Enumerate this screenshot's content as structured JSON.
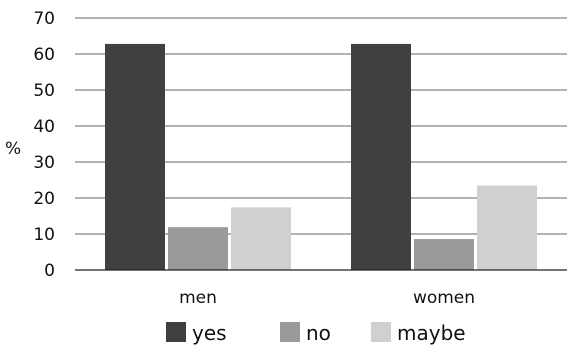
{
  "chart_data": {
    "type": "bar",
    "title": "",
    "xlabel": "",
    "ylabel": "%",
    "ylim": [
      0,
      70
    ],
    "yticks": [
      0,
      10,
      20,
      30,
      40,
      50,
      60,
      70
    ],
    "grid": true,
    "legend_position": "bottom",
    "categories": [
      "men",
      "women"
    ],
    "series": [
      {
        "name": "yes",
        "values": [
          62.8,
          62.8
        ],
        "color": "#404040"
      },
      {
        "name": "no",
        "values": [
          11.9,
          8.6
        ],
        "color": "#9a9a9a"
      },
      {
        "name": "maybe",
        "values": [
          17.4,
          23.5
        ],
        "color": "#d0d0d0"
      }
    ]
  }
}
